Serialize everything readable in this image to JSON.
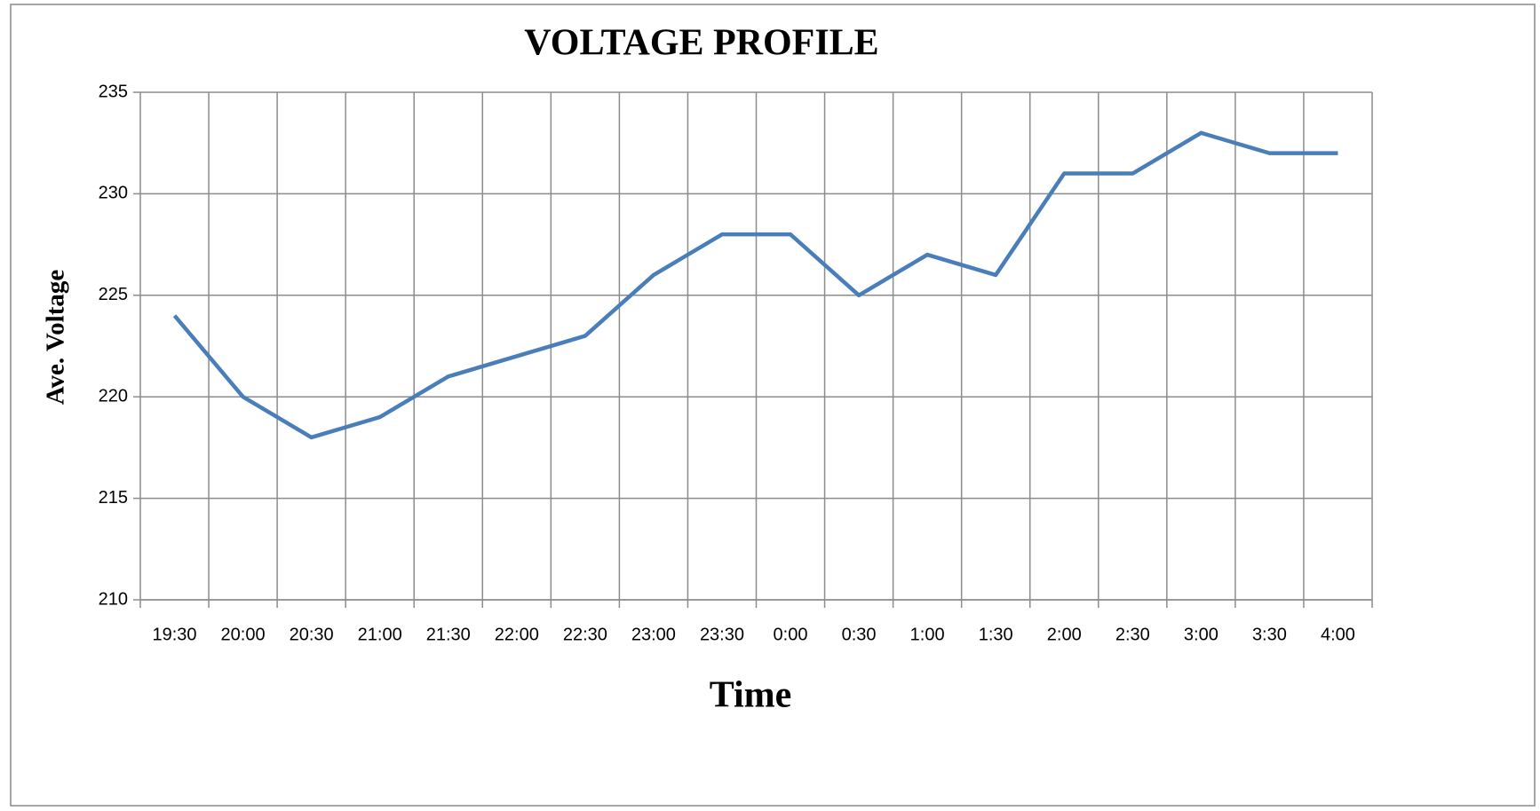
{
  "chart_data": {
    "type": "line",
    "title": "VOLTAGE PROFILE",
    "x_label": "Time",
    "y_label": "Ave. Voltage",
    "categories": [
      "19:30",
      "20:00",
      "20:30",
      "21:00",
      "21:30",
      "22:00",
      "22:30",
      "23:00",
      "23:30",
      "0:00",
      "0:30",
      "1:00",
      "1:30",
      "2:00",
      "2:30",
      "3:00",
      "3:30",
      "4:00"
    ],
    "values": [
      224,
      220,
      218,
      219,
      221,
      222,
      223,
      226,
      228,
      228,
      225,
      227,
      226,
      231,
      231,
      233,
      232,
      232
    ],
    "color": "#4a7ebb",
    "ylim": [
      210,
      235
    ],
    "yticks": [
      210,
      215,
      220,
      225,
      230,
      235
    ],
    "grid": true
  }
}
